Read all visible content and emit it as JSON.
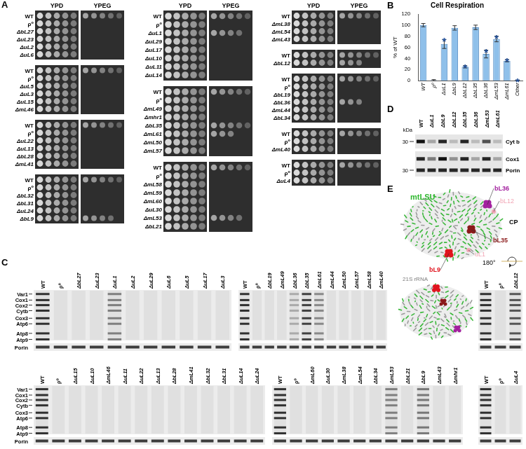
{
  "panel_labels": [
    "A",
    "B",
    "C",
    "D",
    "E"
  ],
  "panel_a": {
    "media": [
      "YPD",
      "YPEG"
    ],
    "dilution_spots": 5,
    "columns": [
      [
        [
          [
            "WT",
            5
          ],
          [
            "ρ⁰",
            0
          ],
          [
            "ΔbL27",
            0
          ],
          [
            "ΔuL23",
            0
          ],
          [
            "ΔuL2",
            0
          ],
          [
            "ΔuL6",
            0
          ]
        ],
        [
          [
            "WT",
            5
          ],
          [
            "ρ⁰",
            0
          ],
          [
            "ΔuL5",
            0
          ],
          [
            "ΔuL3",
            0
          ],
          [
            "ΔuL15",
            0
          ],
          [
            "ΔmL46",
            0
          ]
        ],
        [
          [
            "WT",
            5
          ],
          [
            "ρ⁰",
            0
          ],
          [
            "ΔuL22",
            0
          ],
          [
            "ΔuL13",
            0
          ],
          [
            "ΔbL28",
            0
          ],
          [
            "ΔmL41",
            0
          ]
        ],
        [
          [
            "WT",
            5
          ],
          [
            "ρ⁰",
            0
          ],
          [
            "ΔbL32",
            0
          ],
          [
            "ΔbL31",
            0
          ],
          [
            "ΔuL24",
            0
          ],
          [
            "ΔbL9",
            4
          ]
        ]
      ],
      [
        [
          [
            "WT",
            5
          ],
          [
            "ρ⁰",
            0
          ],
          [
            "ΔuL1",
            4
          ],
          [
            "ΔuL29",
            0
          ],
          [
            "ΔuL17",
            0
          ],
          [
            "ΔuL10",
            0
          ],
          [
            "ΔuL11",
            0
          ],
          [
            "ΔuL14",
            0
          ]
        ],
        [
          [
            "WT",
            5
          ],
          [
            "ρ⁰",
            0
          ],
          [
            "ΔmL49",
            0
          ],
          [
            "Δmhr1",
            0
          ],
          [
            "ΔbL35",
            5
          ],
          [
            "ΔmL61",
            3
          ],
          [
            "ΔmL50",
            0
          ],
          [
            "ΔmL57",
            0
          ]
        ],
        [
          [
            "WT",
            5
          ],
          [
            "ρ⁰",
            0
          ],
          [
            "ΔmL58",
            0
          ],
          [
            "ΔmL59",
            0
          ],
          [
            "ΔmL60",
            0
          ],
          [
            "ΔuL30",
            0
          ],
          [
            "ΔmL53",
            4
          ],
          [
            "ΔbL21",
            0
          ]
        ]
      ],
      [
        [
          [
            "WT",
            5
          ],
          [
            "ΔmL38",
            0
          ],
          [
            "ΔmL54",
            0
          ],
          [
            "ΔmL43",
            0
          ]
        ],
        [
          [
            "WT",
            5
          ],
          [
            "ΔbL12",
            3
          ]
        ],
        [
          [
            "WT",
            5
          ],
          [
            "ρ⁰",
            0
          ],
          [
            "ΔbL19",
            0
          ],
          [
            "ΔbL36",
            3
          ],
          [
            "ΔmL44",
            0
          ],
          [
            "ΔbL34",
            0
          ]
        ],
        [
          [
            "WT",
            5
          ],
          [
            "ρ⁰",
            0
          ],
          [
            "ΔmL40",
            0
          ]
        ],
        [
          [
            "WT",
            5
          ],
          [
            "ρ⁰",
            0
          ],
          [
            "ΔuL4",
            0
          ]
        ]
      ]
    ]
  },
  "chart_data": {
    "type": "bar",
    "title": "Cell Respiration",
    "y_label": "% of WT",
    "categories": [
      "WT",
      "ρ⁰",
      "ΔuL1",
      "ΔbL9",
      "ΔbL12",
      "ΔbL35",
      "ΔbL36",
      "ΔmL53",
      "ΔmL61",
      "Other"
    ],
    "values": [
      100,
      1,
      66,
      95,
      25,
      96,
      48,
      75,
      36,
      1
    ],
    "errors": [
      3,
      1,
      8,
      4,
      2,
      4,
      7,
      5,
      2,
      0
    ],
    "color": "#8fc0ea",
    "ylim": [
      0,
      120
    ],
    "yticks": [
      0,
      20,
      40,
      60,
      80,
      100,
      120
    ],
    "grid": false,
    "annotations": [
      {
        "category": "ΔuL1",
        "text": "*",
        "color": "#1f4e9a"
      },
      {
        "category": "ΔbL12",
        "text": "*",
        "color": "#1f4e9a"
      },
      {
        "category": "ΔbL36",
        "text": "*",
        "color": "#1f4e9a"
      },
      {
        "category": "ΔmL53",
        "text": "*",
        "color": "#1f4e9a"
      },
      {
        "category": "ΔmL61",
        "text": "*",
        "color": "#1f4e9a"
      },
      {
        "category": "Other",
        "text": "*",
        "color": "#1f4e9a"
      }
    ]
  },
  "panel_c": {
    "bands": [
      "Var1",
      "Cox1",
      "Cox2",
      "Cytb",
      "Cox3",
      "Atp6",
      "Atp8",
      "Atp9"
    ],
    "loading": "Porin",
    "loading_signal": 0.8,
    "gels": [
      {
        "lanes": [
          "WT",
          "ρ⁰",
          "ΔbL27",
          "ΔuL23",
          "ΔuL1",
          "ΔuL2",
          "ΔuL29",
          "ΔuL6",
          "ΔuL5",
          "ΔuL17",
          "ΔuL3"
        ],
        "signal": [
          1,
          0,
          0,
          0,
          0.55,
          0,
          0,
          0,
          0,
          0,
          0
        ]
      },
      {
        "lanes": [
          "WT",
          "ρ⁰",
          "ΔbL19",
          "ΔmL49",
          "ΔbL36",
          "ΔbL35",
          "ΔmL61",
          "ΔmL44",
          "ΔmL50",
          "ΔmL57",
          "ΔmL58",
          "ΔmL40"
        ],
        "signal": [
          1,
          0,
          0,
          0,
          0.3,
          0.9,
          0.5,
          0,
          0,
          0,
          0,
          0
        ]
      },
      {
        "lanes": [
          "WT",
          "ρ⁰",
          "ΔbL12"
        ],
        "signal": [
          1,
          0,
          0.8
        ]
      },
      {
        "lanes": [
          "WT",
          "ρ⁰",
          "ΔuL15",
          "ΔuL10",
          "ΔmL46",
          "ΔuL11",
          "ΔuL22",
          "ΔuL13",
          "ΔbL28",
          "ΔmL41",
          "ΔbL32",
          "ΔbL31",
          "ΔuL14",
          "ΔuL24"
        ],
        "signal": [
          1,
          0,
          0,
          0,
          0,
          0,
          0,
          0,
          0,
          0,
          0,
          0,
          0,
          0
        ]
      },
      {
        "lanes": [
          "WT",
          "ρ⁰",
          "ΔmL60",
          "ΔuL30",
          "ΔmL38",
          "ΔmL54",
          "ΔbL34",
          "ΔmL53",
          "ΔbL21",
          "ΔbL9",
          "ΔmL43",
          "Δmhr1"
        ],
        "signal": [
          1,
          0,
          0,
          0,
          0,
          0,
          0,
          0.55,
          0,
          0.6,
          0,
          0
        ]
      },
      {
        "lanes": [
          "WT",
          "ρ⁰",
          "ΔuL4"
        ],
        "signal": [
          1,
          0,
          0
        ]
      }
    ]
  },
  "panel_d": {
    "unit": "kDa",
    "lanes": [
      "WT",
      "ΔuL1",
      "ΔbL9",
      "ΔbL12",
      "ΔbL35",
      "ΔbL36",
      "ΔmL53",
      "ΔmL61"
    ],
    "blots": [
      {
        "marker": 30,
        "proteins": [
          {
            "name": "Cyt b",
            "signal": [
              1,
              0.3,
              0.9,
              0.2,
              0.9,
              0.2,
              0.7,
              0.2
            ]
          }
        ]
      },
      {
        "marker": 30,
        "proteins": [
          {
            "name": "Cox1",
            "signal": [
              0.9,
              0.5,
              1,
              0.4,
              0.9,
              0.3,
              0.9,
              0.3
            ]
          },
          {
            "name": "Porin",
            "signal": [
              0.9,
              0.9,
              0.9,
              0.9,
              0.9,
              0.9,
              0.9,
              0.9
            ]
          }
        ]
      }
    ]
  },
  "panel_e": {
    "texts": [
      {
        "text": "mtLSU",
        "color": "#2fb82f"
      },
      {
        "text": "bL36",
        "color": "#a3209f"
      },
      {
        "text": "bL12",
        "color": "#f2a7b6"
      },
      {
        "text": "CP",
        "color": "#000000"
      },
      {
        "text": "bL35",
        "color": "#8b1a1a"
      },
      {
        "text": "uL1",
        "color": "#f2a7b6"
      },
      {
        "text": "bL9",
        "color": "#e0141e"
      },
      {
        "text": "21S rRNA",
        "color": "#7a7a7a"
      },
      {
        "text": "180°",
        "color": "#000000"
      }
    ]
  }
}
